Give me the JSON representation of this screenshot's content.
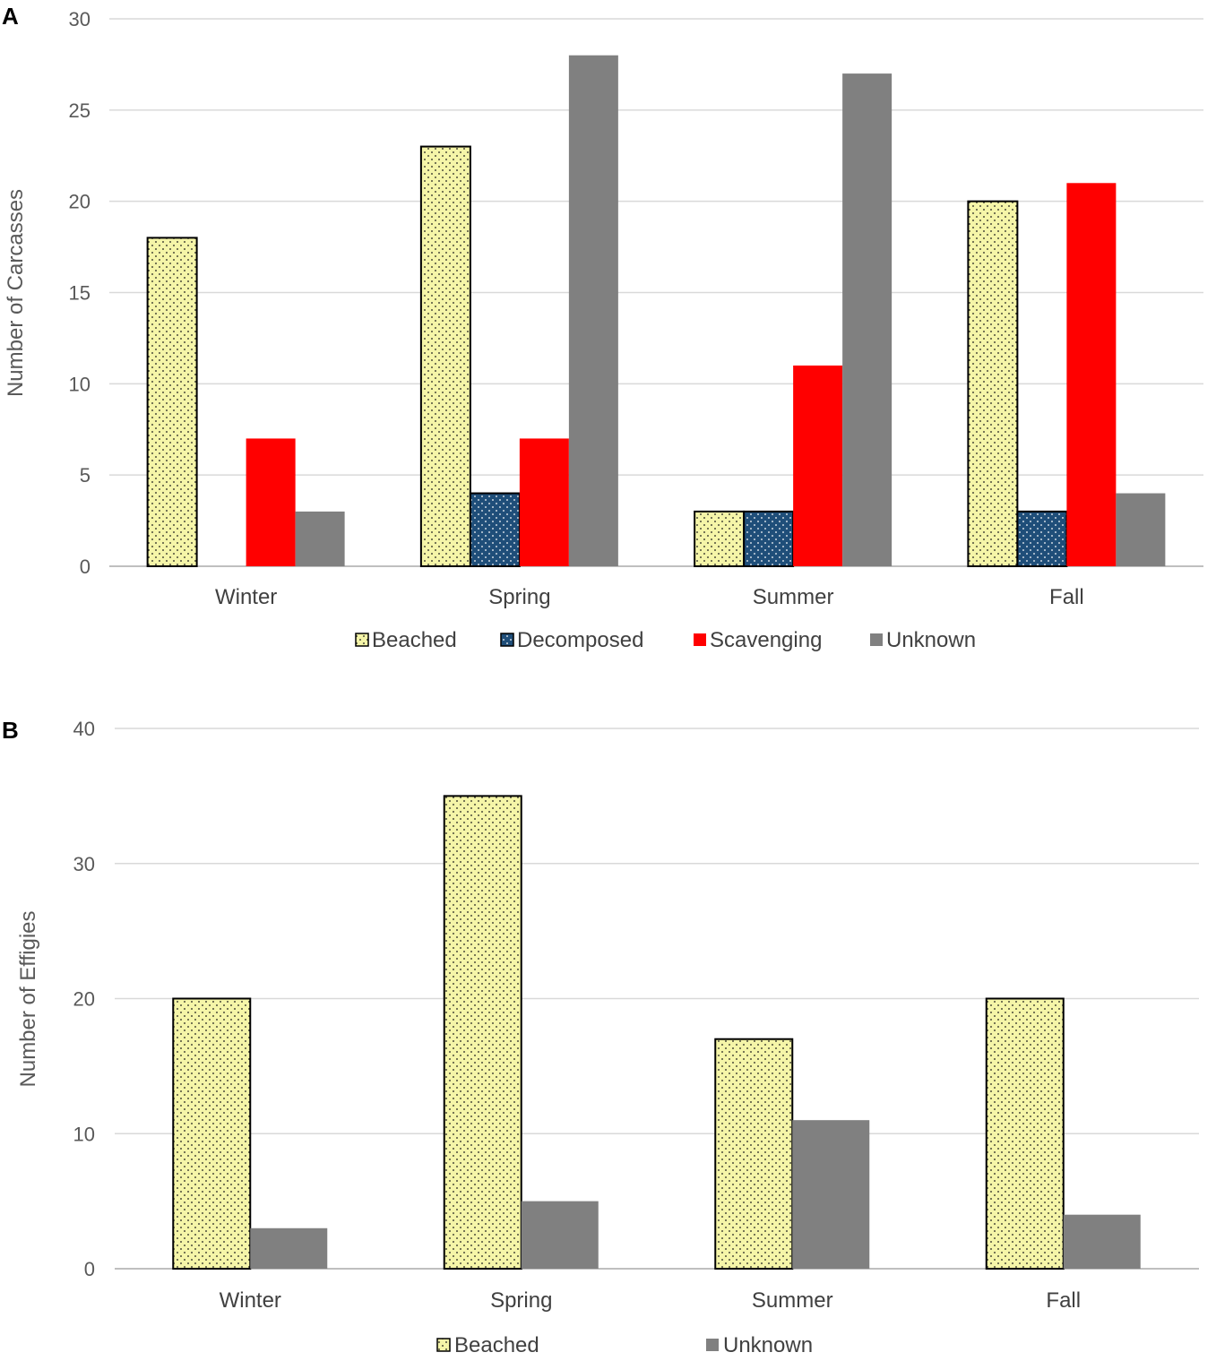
{
  "colors": {
    "beached_fill": "#f5f5a8",
    "beached_dots": "#1a1a1a",
    "decomposed_fill": "#1f4e79",
    "decomposed_dots": "#ffffff",
    "scavenging": "#ff0000",
    "unknown": "#808080"
  },
  "chart_data": [
    {
      "panel": "A",
      "type": "bar",
      "title": "",
      "xlabel": "",
      "ylabel": "Number of Carcasses",
      "ylim": [
        0,
        30
      ],
      "yticks": [
        0,
        5,
        10,
        15,
        20,
        25,
        30
      ],
      "categories": [
        "Winter",
        "Spring",
        "Summer",
        "Fall"
      ],
      "series": [
        {
          "name": "Beached",
          "key": "beached",
          "values": [
            18,
            23,
            3,
            20
          ]
        },
        {
          "name": "Decomposed",
          "key": "decomposed",
          "values": [
            0,
            4,
            3,
            3
          ]
        },
        {
          "name": "Scavenging",
          "key": "scavenging",
          "values": [
            7,
            7,
            11,
            21
          ]
        },
        {
          "name": "Unknown",
          "key": "unknown",
          "values": [
            3,
            28,
            27,
            4
          ]
        }
      ],
      "legend": "bottom"
    },
    {
      "panel": "B",
      "type": "bar",
      "title": "",
      "xlabel": "",
      "ylabel": "Number of Effigies",
      "ylim": [
        0,
        40
      ],
      "yticks": [
        0,
        10,
        20,
        30,
        40
      ],
      "categories": [
        "Winter",
        "Spring",
        "Summer",
        "Fall"
      ],
      "series": [
        {
          "name": "Beached",
          "key": "beached",
          "values": [
            20,
            35,
            17,
            20
          ]
        },
        {
          "name": "Unknown",
          "key": "unknown",
          "values": [
            3,
            5,
            11,
            4
          ]
        }
      ],
      "legend": "bottom"
    }
  ]
}
